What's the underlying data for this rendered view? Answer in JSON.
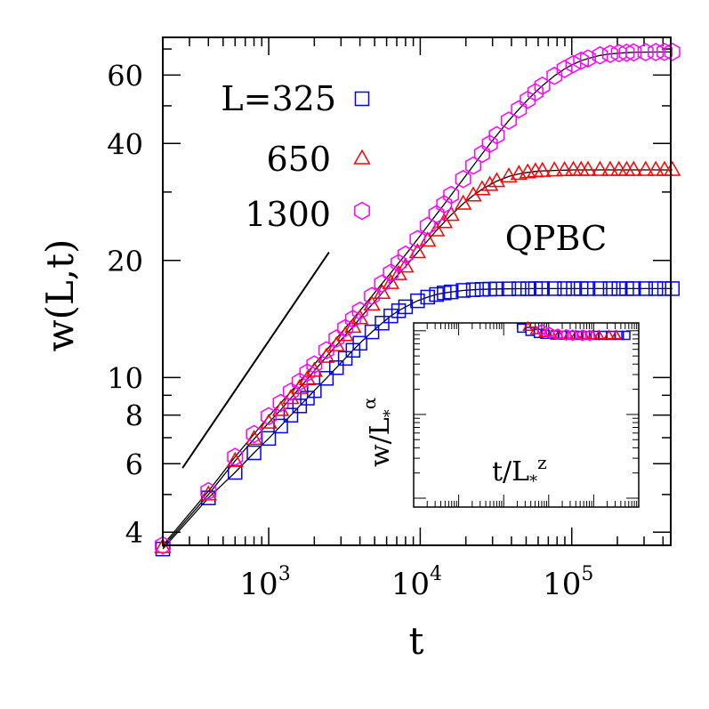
{
  "chart_data": {
    "type": "scatter",
    "xscale": "log",
    "yscale": "log",
    "xlim": [
      200,
      450000
    ],
    "ylim": [
      3.7,
      75
    ],
    "xlabel": "t",
    "ylabel": "w(L,t)",
    "xticks": [
      {
        "value": 1000,
        "base": "10",
        "exp": "3"
      },
      {
        "value": 10000,
        "base": "10",
        "exp": "4"
      },
      {
        "value": 100000,
        "base": "10",
        "exp": "5"
      }
    ],
    "yticks": [
      {
        "value": 4,
        "label": "4"
      },
      {
        "value": 6,
        "label": "6"
      },
      {
        "value": 8,
        "label": "8"
      },
      {
        "value": 10,
        "label": "10"
      },
      {
        "value": 20,
        "label": "20"
      },
      {
        "value": 40,
        "label": "40"
      },
      {
        "value": 60,
        "label": "60"
      }
    ],
    "annotation": "QPBC",
    "legend_placement": "top-left",
    "guide_line": {
      "x": [
        270,
        2500
      ],
      "y": [
        5.85,
        21
      ]
    },
    "series": [
      {
        "name": "L=325",
        "marker": "square",
        "color": "#0000ff",
        "x": [
          200,
          400,
          600,
          800,
          1000,
          1200,
          1400,
          1600,
          1800,
          2000,
          2400,
          2800,
          3200,
          3600,
          4000,
          4800,
          5600,
          6400,
          7200,
          8000,
          9600,
          11200,
          12800,
          14400,
          16000,
          19200,
          22400,
          25600,
          28800,
          32000,
          38400,
          44800,
          51200,
          57600,
          64000,
          76800,
          89600,
          102400,
          115200,
          128000,
          153600,
          179200,
          204800,
          230400,
          256000,
          307200,
          358400,
          409600,
          460800
        ],
        "y": [
          3.62,
          4.9,
          5.7,
          6.4,
          6.97,
          7.5,
          8.0,
          8.45,
          8.85,
          9.25,
          9.95,
          10.6,
          11.2,
          11.75,
          12.25,
          13.1,
          13.8,
          14.4,
          14.85,
          15.2,
          15.75,
          16.1,
          16.35,
          16.5,
          16.6,
          16.75,
          16.82,
          16.86,
          16.88,
          16.9,
          16.91,
          16.92,
          16.92,
          16.93,
          16.93,
          16.93,
          16.93,
          16.93,
          16.93,
          16.93,
          16.93,
          16.93,
          16.93,
          16.93,
          16.93,
          16.93,
          16.93,
          16.93,
          16.93
        ]
      },
      {
        "name": "650",
        "marker": "triangle",
        "color": "#ff0000",
        "x": [
          200,
          400,
          600,
          800,
          1000,
          1200,
          1400,
          1600,
          1800,
          2000,
          2400,
          2800,
          3200,
          3600,
          4000,
          4800,
          5600,
          6400,
          7200,
          8000,
          9600,
          11200,
          12800,
          14400,
          16000,
          19200,
          22400,
          25600,
          28800,
          32000,
          38400,
          44800,
          51200,
          57600,
          64000,
          76800,
          89600,
          102400,
          115200,
          128000,
          153600,
          179200,
          204800,
          230400,
          256000,
          307200,
          358400,
          409600,
          460800
        ],
        "y": [
          3.66,
          5.0,
          6.1,
          6.95,
          7.65,
          8.25,
          8.85,
          9.4,
          9.9,
          10.4,
          11.3,
          12.1,
          12.85,
          13.5,
          14.2,
          15.4,
          16.5,
          17.5,
          18.45,
          19.3,
          21.0,
          22.5,
          23.9,
          25.1,
          26.2,
          28.0,
          29.4,
          30.5,
          31.3,
          32.0,
          32.9,
          33.4,
          33.7,
          33.9,
          34.0,
          34.1,
          34.15,
          34.2,
          34.2,
          34.2,
          34.2,
          34.2,
          34.2,
          34.2,
          34.2,
          34.2,
          34.2,
          34.2,
          34.2
        ]
      },
      {
        "name": "1300",
        "marker": "hexagon",
        "color": "#ff00ff",
        "x": [
          200,
          400,
          600,
          800,
          1000,
          1200,
          1400,
          1600,
          1800,
          2000,
          2400,
          2800,
          3200,
          3600,
          4000,
          4800,
          5600,
          6400,
          7200,
          8000,
          9600,
          11200,
          12800,
          14400,
          16000,
          19200,
          22400,
          25600,
          28800,
          32000,
          38400,
          44800,
          51200,
          57600,
          64000,
          76800,
          89600,
          102400,
          115200,
          128000,
          153600,
          179200,
          204800,
          230400,
          256000,
          307200,
          358400,
          409600,
          460800
        ],
        "y": [
          3.7,
          5.1,
          6.25,
          7.15,
          7.95,
          8.6,
          9.2,
          9.75,
          10.3,
          10.8,
          11.75,
          12.6,
          13.4,
          14.15,
          14.85,
          16.2,
          17.45,
          18.6,
          19.7,
          20.7,
          22.7,
          24.55,
          26.3,
          27.9,
          29.5,
          32.4,
          35.1,
          37.6,
          39.9,
          42.0,
          45.8,
          49.0,
          51.8,
          54.2,
          56.3,
          59.7,
          62.2,
          64.0,
          65.3,
          66.2,
          67.4,
          68.0,
          68.3,
          68.5,
          68.6,
          68.7,
          68.75,
          68.8,
          68.8
        ]
      }
    ],
    "inset": {
      "xlabel_base": "t/L",
      "xlabel_sub": "*",
      "xlabel_sup": "z",
      "ylabel_base": "w/L",
      "ylabel_sub": "*",
      "ylabel_sup": "α",
      "note": "collapsed data of all three series"
    }
  }
}
